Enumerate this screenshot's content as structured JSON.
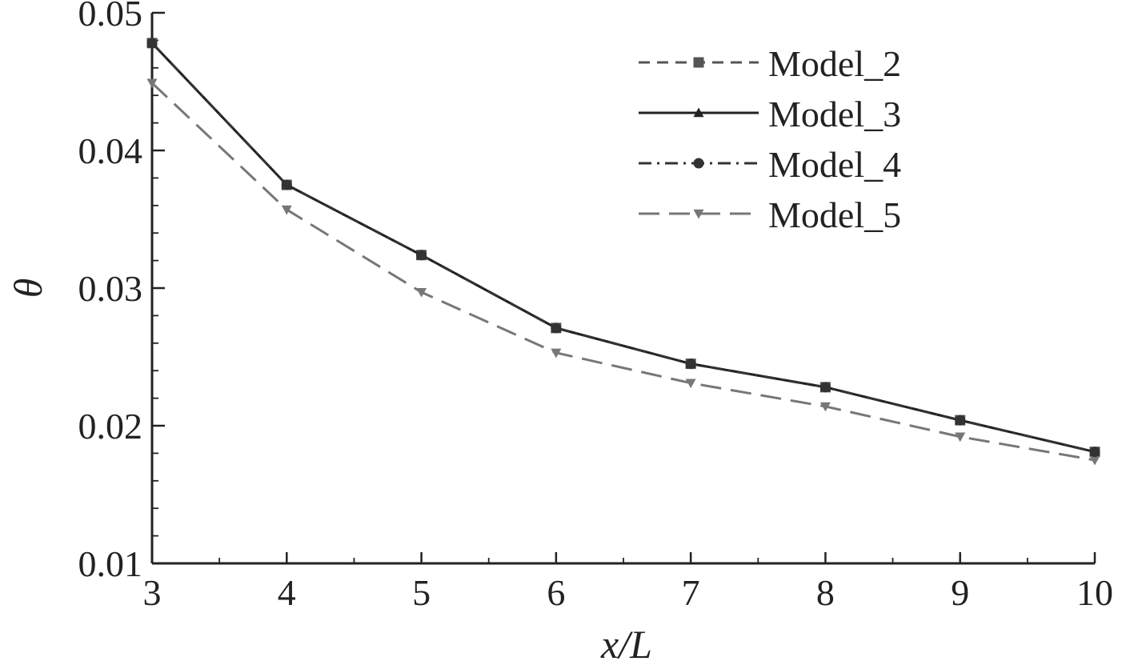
{
  "chart_data": {
    "type": "line",
    "title": "",
    "xlabel": "x/L",
    "ylabel": "θ",
    "x": [
      3,
      4,
      5,
      6,
      7,
      8,
      9,
      10
    ],
    "xlim": [
      3,
      10
    ],
    "ylim": [
      0.01,
      0.05
    ],
    "xticks": [
      3,
      4,
      5,
      6,
      7,
      8,
      9,
      10
    ],
    "xtick_labels": [
      "3",
      "4",
      "5",
      "6",
      "7",
      "8",
      "9",
      "10"
    ],
    "yticks": [
      0.01,
      0.02,
      0.03,
      0.04,
      0.05
    ],
    "ytick_labels": [
      "0.01",
      "0.02",
      "0.03",
      "0.04",
      "0.05"
    ],
    "grid": false,
    "legend_position": "top-right",
    "series": [
      {
        "name": "Model_2",
        "values": [
          0.0478,
          0.0375,
          0.0324,
          0.0271,
          0.0245,
          0.0228,
          0.0204,
          0.0181
        ],
        "color": "#555555",
        "dash": "dashed",
        "marker": "square"
      },
      {
        "name": "Model_3",
        "values": [
          0.0478,
          0.0375,
          0.0324,
          0.0271,
          0.0245,
          0.0228,
          0.0204,
          0.0181
        ],
        "color": "#222222",
        "dash": "solid",
        "marker": "triangle-up"
      },
      {
        "name": "Model_4",
        "values": [
          0.0478,
          0.0375,
          0.0324,
          0.0271,
          0.0245,
          0.0228,
          0.0204,
          0.0181
        ],
        "color": "#333333",
        "dash": "dash-dot",
        "marker": "circle"
      },
      {
        "name": "Model_5",
        "values": [
          0.0449,
          0.0357,
          0.0297,
          0.0253,
          0.0231,
          0.0214,
          0.0192,
          0.0175
        ],
        "color": "#777777",
        "dash": "long-dash",
        "marker": "triangle-down"
      }
    ]
  }
}
